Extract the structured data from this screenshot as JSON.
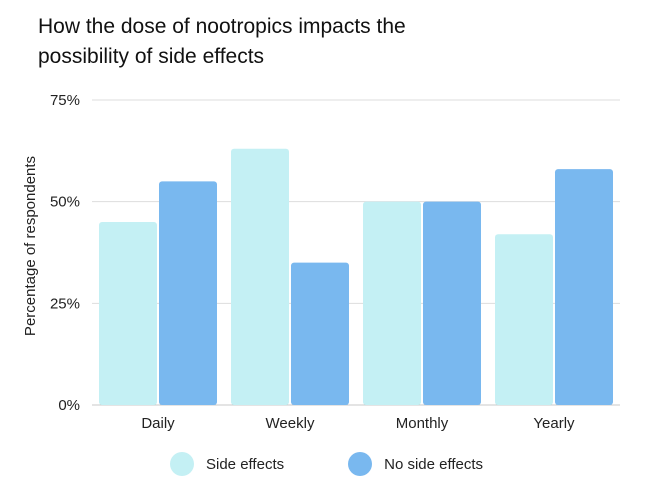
{
  "chart_data": {
    "type": "bar",
    "title_lines": [
      "How the dose of nootropics impacts the",
      "possibility of side effects"
    ],
    "ylabel": "Percentage of respondents",
    "xlabel": "",
    "categories": [
      "Daily",
      "Weekly",
      "Monthly",
      "Yearly"
    ],
    "series": [
      {
        "name": "Side effects",
        "values": [
          45,
          63,
          50,
          42
        ],
        "color": "#c4f0f4"
      },
      {
        "name": "No side effects",
        "values": [
          55,
          35,
          50,
          58
        ],
        "color": "#79b8ef"
      }
    ],
    "ylim": [
      0,
      75
    ],
    "yticks": [
      0,
      25,
      50,
      75
    ],
    "ytick_labels": [
      "0%",
      "25%",
      "50%",
      "75%"
    ],
    "grid": true,
    "legend_position": "bottom",
    "gridline_color": "#dddddd",
    "axis_color": "#c8c8c8"
  }
}
